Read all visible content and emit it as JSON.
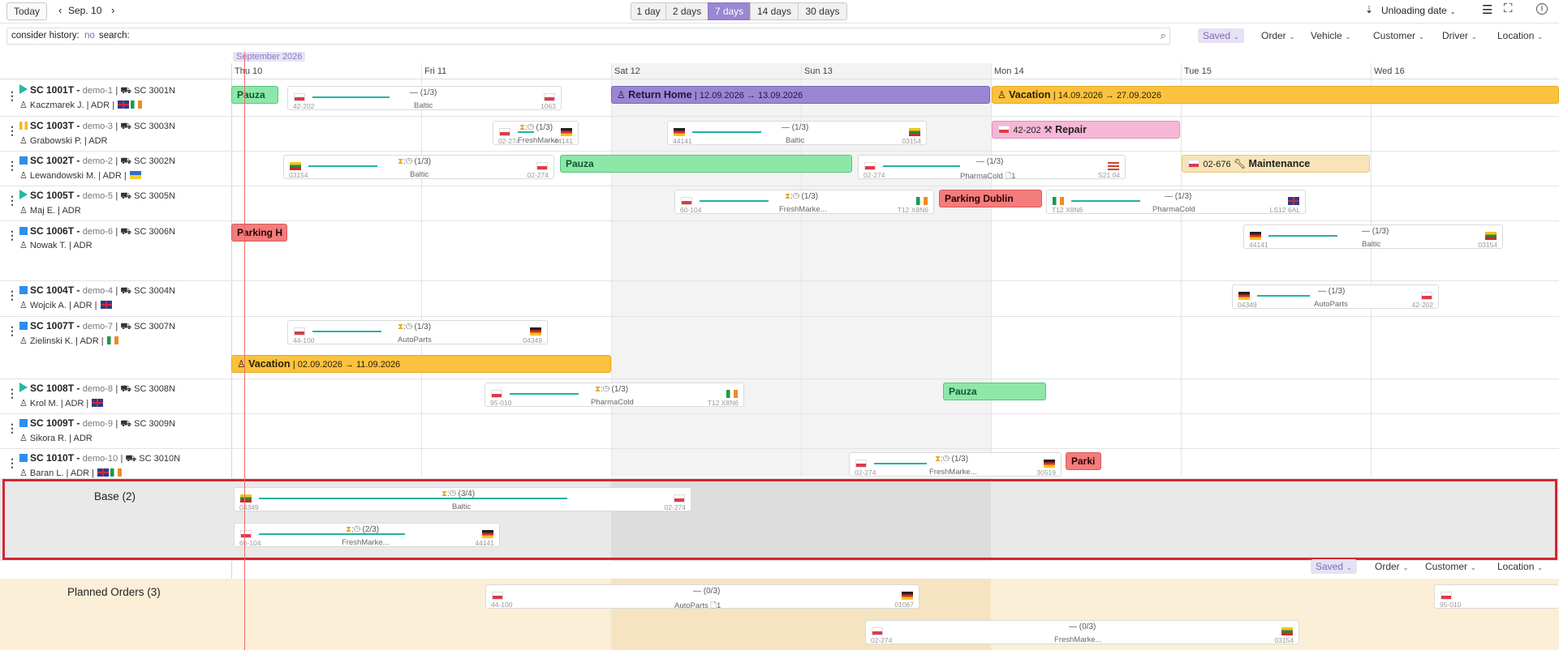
{
  "toolbar": {
    "today": "Today",
    "date": "Sep. 10",
    "ranges": [
      "1 day",
      "2 days",
      "7 days",
      "14 days",
      "30 days"
    ],
    "active_range": "7 days",
    "sort_label": "Unloading date"
  },
  "search": {
    "history_label": "consider history:",
    "history_value": "no",
    "search_label": "search:"
  },
  "filters": {
    "saved": "Saved",
    "order": "Order",
    "vehicle": "Vehicle",
    "customer": "Customer",
    "driver": "Driver",
    "location": "Location"
  },
  "calendar": {
    "month": "September 2026",
    "days": [
      "Thu 10",
      "Fri 11",
      "Sat 12",
      "Sun 13",
      "Mon 14",
      "Tue 15",
      "Wed 16"
    ]
  },
  "vehicles": [
    {
      "name": "SC 1001T -",
      "sub": "demo-1",
      "trailer": "SC 3001N",
      "driver": "Kaczmarek J. | ADR |",
      "status": "play"
    },
    {
      "name": "SC 1003T -",
      "sub": "demo-3",
      "trailer": "SC 3003N",
      "driver": "Grabowski P. | ADR",
      "status": "pause"
    },
    {
      "name": "SC 1002T -",
      "sub": "demo-2",
      "trailer": "SC 3002N",
      "driver": "Lewandowski M. | ADR |",
      "status": "blue"
    },
    {
      "name": "SC 1005T -",
      "sub": "demo-5",
      "trailer": "SC 3005N",
      "driver": "Maj E. | ADR",
      "status": "play"
    },
    {
      "name": "SC 1006T -",
      "sub": "demo-6",
      "trailer": "SC 3006N",
      "driver": "Nowak T. | ADR",
      "status": "blue"
    },
    {
      "name": "SC 1004T -",
      "sub": "demo-4",
      "trailer": "SC 3004N",
      "driver": "Wojcik A. | ADR |",
      "status": "blue"
    },
    {
      "name": "SC 1007T -",
      "sub": "demo-7",
      "trailer": "SC 3007N",
      "driver": "Zielinski K. | ADR |",
      "status": "blue"
    },
    {
      "name": "SC 1008T -",
      "sub": "demo-8",
      "trailer": "SC 3008N",
      "driver": "Krol M. | ADR |",
      "status": "play"
    },
    {
      "name": "SC 1009T -",
      "sub": "demo-9",
      "trailer": "SC 3009N",
      "driver": "Sikora R. | ADR",
      "status": "blue"
    },
    {
      "name": "SC 1010T -",
      "sub": "demo-10",
      "trailer": "SC 3010N",
      "driver": "Baran L. | ADR |",
      "status": "blue"
    }
  ],
  "blocks": {
    "pauza": "Pauza",
    "return_home": "Return Home",
    "return_dates": "| 12.09.2026 → 13.09.2026",
    "vacation": "Vacation",
    "vac1_dates": "| 14.09.2026 → 27.09.2026",
    "vac2_dates": "| 02.09.2026 → 11.09.2026",
    "repair_code": "42-202",
    "repair": "Repair",
    "maint_code": "02-676",
    "maintenance": "Maintenance",
    "parking_dublin": "Parking Dublin",
    "parking_h": "Parking H",
    "parki": "Parki"
  },
  "orders": {
    "one_of_three": "(1/3)",
    "three_of_four": "(3/4)",
    "two_of_three": "(2/3)",
    "zero_of_three": "(0/3)",
    "baltic": "Baltic",
    "pharma": "PharmaCold",
    "fresh": "FreshMarke...",
    "fresh_short": "FreshMarke",
    "auto": "AutoParts",
    "zip": {
      "z1": "42-202",
      "z2": "1063",
      "z3": "02-274",
      "z4": "44141",
      "z5": "03154",
      "z6": "03154",
      "z7": "02-274",
      "z8": "02-274",
      "z9": "S21 04",
      "z10": "60-104",
      "z11": "T12 X8N6",
      "z12": "T12 X8N6",
      "z13": "LS12 6AL",
      "z14": "44141",
      "z15": "03154",
      "z16": "04349",
      "z17": "42-202",
      "z18": "44-100",
      "z19": "04349",
      "z20": "95-010",
      "z21": "T12 X8N6",
      "z22": "02-274",
      "z23": "30519",
      "z24": "04349",
      "z25": "02-274",
      "z26": "60-104",
      "z27": "44141",
      "z28": "44-100",
      "z29": "01067",
      "z30": "95-010",
      "z31": "02-274",
      "z32": "03154"
    }
  },
  "base": {
    "label": "Base (2)"
  },
  "planned": {
    "label": "Planned Orders (3)"
  }
}
